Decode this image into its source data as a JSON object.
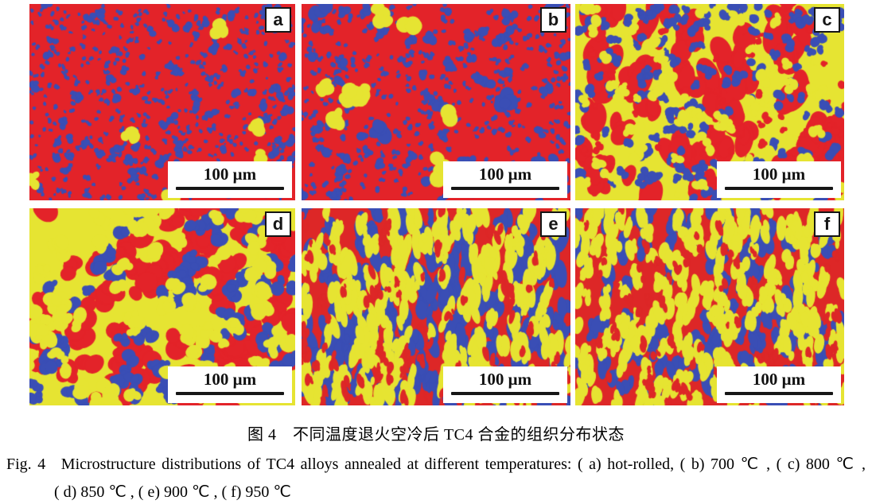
{
  "figure": {
    "scale_bar_label": "100 μm",
    "colors": {
      "alpha_red": "#e32329",
      "beta_blue": "#3a4eb5",
      "yellow_phase": "#e6e432"
    },
    "panels": [
      {
        "id": "a",
        "label": "a",
        "base": "#e32329",
        "seed": 101,
        "layers": [
          {
            "color": "#3a4eb5",
            "count": 520,
            "rmin": 0.8,
            "rmax": 2.6,
            "lobes": 3
          },
          {
            "color": "#3a4eb5",
            "count": 85,
            "rmin": 2,
            "rmax": 5,
            "lobes": 4
          },
          {
            "color": "#e6e432",
            "count": 7,
            "rmin": 5,
            "rmax": 9,
            "lobes": 4
          }
        ]
      },
      {
        "id": "b",
        "label": "b",
        "base": "#e32329",
        "seed": 202,
        "layers": [
          {
            "color": "#3a4eb5",
            "count": 430,
            "rmin": 1,
            "rmax": 3,
            "lobes": 3
          },
          {
            "color": "#3a4eb5",
            "count": 60,
            "rmin": 2.5,
            "rmax": 6,
            "lobes": 4
          },
          {
            "color": "#3a4eb5",
            "count": 6,
            "rmin": 6,
            "rmax": 10,
            "lobes": 4
          },
          {
            "color": "#e6e432",
            "count": 10,
            "rmin": 6,
            "rmax": 11,
            "lobes": 4
          }
        ]
      },
      {
        "id": "c",
        "label": "c",
        "base": "#e6e432",
        "seed": 303,
        "layers": [
          {
            "color": "#e32329",
            "count": 60,
            "rmin": 6,
            "rmax": 14,
            "lobes": 4,
            "aspect": 1.5,
            "rotJitter": 1.2
          },
          {
            "color": "#e32329",
            "count": 60,
            "rmin": 2,
            "rmax": 5,
            "lobes": 3
          },
          {
            "color": "#3a4eb5",
            "count": 160,
            "rmin": 2,
            "rmax": 6,
            "lobes": 4
          },
          {
            "color": "#e6e432",
            "count": 60,
            "rmin": 3,
            "rmax": 7,
            "lobes": 4
          }
        ]
      },
      {
        "id": "d",
        "label": "d",
        "base": "#e6e432",
        "seed": 404,
        "layers": [
          {
            "color": "#e32329",
            "count": 90,
            "rmin": 6,
            "rmax": 14,
            "lobes": 4
          },
          {
            "color": "#3a4eb5",
            "count": 80,
            "rmin": 4,
            "rmax": 9,
            "lobes": 4
          },
          {
            "color": "#e6e432",
            "count": 70,
            "rmin": 4,
            "rmax": 10,
            "lobes": 4
          }
        ]
      },
      {
        "id": "e",
        "label": "e",
        "base": "#dd2727",
        "seed": 505,
        "layers": [
          {
            "color": "#3a4eb5",
            "count": 150,
            "rmin": 3,
            "rmax": 8,
            "lobes": 4,
            "aspect": 2.0,
            "rotJitter": 0.7
          },
          {
            "color": "#e6e432",
            "count": 180,
            "rmin": 2.5,
            "rmax": 6.5,
            "lobes": 4,
            "aspect": 2.2,
            "rotJitter": 0.7
          },
          {
            "color": "#dd2727",
            "count": 90,
            "rmin": 1.5,
            "rmax": 4,
            "lobes": 3,
            "aspect": 2.0,
            "rotJitter": 0.7
          }
        ]
      },
      {
        "id": "f",
        "label": "f",
        "base": "#dd2727",
        "seed": 606,
        "layers": [
          {
            "color": "#3a4eb5",
            "count": 120,
            "rmin": 3,
            "rmax": 7,
            "lobes": 4,
            "aspect": 1.8,
            "rotJitter": 0.8
          },
          {
            "color": "#e6e432",
            "count": 200,
            "rmin": 2.5,
            "rmax": 6.5,
            "lobes": 4,
            "aspect": 2.0,
            "rotJitter": 0.7
          },
          {
            "color": "#dd2727",
            "count": 70,
            "rmin": 1.5,
            "rmax": 4,
            "lobes": 3,
            "aspect": 1.8,
            "rotJitter": 0.8
          }
        ]
      }
    ]
  },
  "captions": {
    "chinese": "图 4　不同温度退火空冷后 TC4 合金的组织分布状态",
    "english_fig_label": "Fig. 4",
    "english_line1": "Microstructure distributions of TC4 alloys annealed at different temperatures: ( a)  hot-rolled, ( b)  700 ℃ , ( c)  800 ℃ ,",
    "english_line2": "( d)  850 ℃ , ( e)  900 ℃ , ( f)  950 ℃"
  }
}
